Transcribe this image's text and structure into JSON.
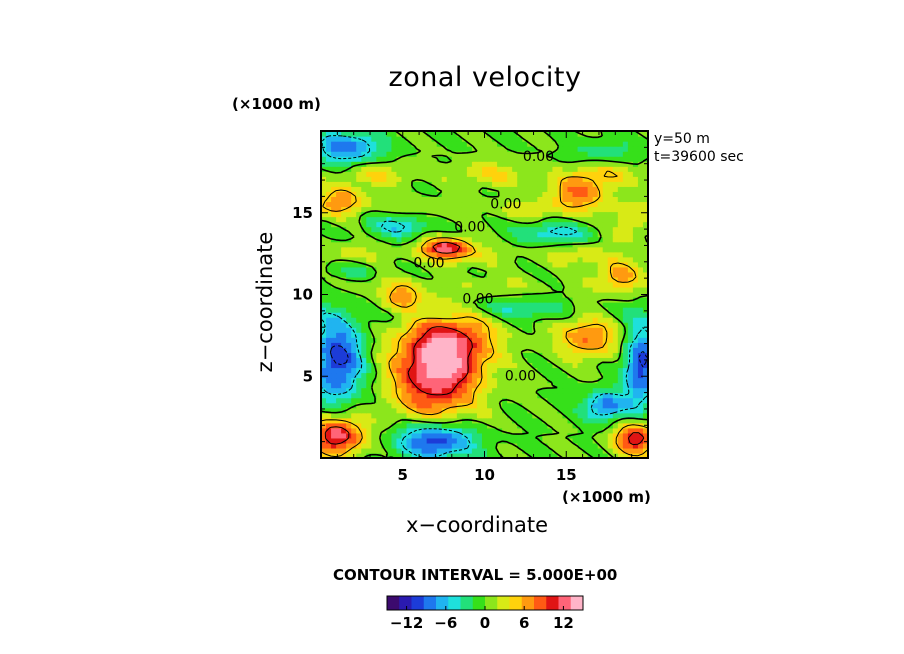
{
  "figure": {
    "title": "zonal velocity",
    "top_unit": "(×1000 m)",
    "bottom_unit": "(×1000 m)",
    "info_line1": "y=50  m",
    "info_line2": "t=39600 sec",
    "contour_interval": "CONTOUR INTERVAL = 5.000E+00"
  },
  "colors": {
    "palette": [
      "#3c0a6e",
      "#2a1ab0",
      "#1c3cd8",
      "#1e78ee",
      "#20b4f0",
      "#1ee0dc",
      "#22e07a",
      "#36e01a",
      "#8ce61c",
      "#d8ea16",
      "#ffd20c",
      "#ff9a10",
      "#ff5a14",
      "#e01414",
      "#ff6478",
      "#ffb4c8"
    ],
    "contour_line": "#000000",
    "frame": "#000000"
  },
  "chart_data": {
    "type": "heatmap",
    "title": "zonal velocity",
    "xlabel": "x−coordinate",
    "ylabel": "z−coordinate",
    "xlim": [
      0,
      20
    ],
    "ylim": [
      0,
      20
    ],
    "x_ticks": [
      5,
      10,
      15
    ],
    "y_ticks": [
      5,
      10,
      15
    ],
    "x_tick_labels": [
      "5",
      "10",
      "15"
    ],
    "y_tick_labels": [
      "5",
      "10",
      "15"
    ],
    "value_range": [
      -14,
      14
    ],
    "contour_labels": [
      {
        "text": "0.00",
        "x": 13.3,
        "z": 18.4
      },
      {
        "text": "0.00",
        "x": 11.3,
        "z": 15.5
      },
      {
        "text": "0.00",
        "x": 9.1,
        "z": 14.1
      },
      {
        "text": "0.00",
        "x": 6.6,
        "z": 11.9
      },
      {
        "text": "0.00",
        "x": 9.6,
        "z": 9.7
      },
      {
        "text": "0.00",
        "x": 12.2,
        "z": 5.0
      }
    ],
    "blobs": [
      {
        "x": 7.0,
        "z": 5.2,
        "rx": 2.6,
        "rz": 2.8,
        "v": 13
      },
      {
        "x": 8.2,
        "z": 7.2,
        "rx": 2.6,
        "rz": 1.8,
        "v": 7
      },
      {
        "x": 1.0,
        "z": 1.4,
        "rx": 1.6,
        "rz": 1.2,
        "v": 13
      },
      {
        "x": 19.3,
        "z": 1.2,
        "rx": 1.3,
        "rz": 1.0,
        "v": 12
      },
      {
        "x": 16.3,
        "z": 7.4,
        "rx": 1.8,
        "rz": 1.2,
        "v": 8
      },
      {
        "x": 7.6,
        "z": 12.9,
        "rx": 1.5,
        "rz": 0.6,
        "v": 12
      },
      {
        "x": 15.8,
        "z": 16.2,
        "rx": 1.8,
        "rz": 1.0,
        "v": 8
      },
      {
        "x": 1.3,
        "z": 15.8,
        "rx": 1.4,
        "rz": 0.8,
        "v": 7
      },
      {
        "x": 18.3,
        "z": 11.3,
        "rx": 1.3,
        "rz": 0.8,
        "v": 6
      },
      {
        "x": 5.0,
        "z": 9.8,
        "rx": 1.3,
        "rz": 0.8,
        "v": 6
      },
      {
        "x": 18.6,
        "z": 14.0,
        "rx": 1.0,
        "rz": 0.8,
        "v": 4
      },
      {
        "x": 1.0,
        "z": 6.0,
        "rx": 1.6,
        "rz": 2.6,
        "v": -11
      },
      {
        "x": 19.6,
        "z": 5.6,
        "rx": 1.0,
        "rz": 2.4,
        "v": -11
      },
      {
        "x": 7.0,
        "z": 1.1,
        "rx": 2.3,
        "rz": 1.1,
        "v": -12
      },
      {
        "x": 17.4,
        "z": 3.2,
        "rx": 1.3,
        "rz": 0.9,
        "v": -9
      },
      {
        "x": 1.6,
        "z": 19.0,
        "rx": 2.0,
        "rz": 1.0,
        "v": -9
      },
      {
        "x": 4.8,
        "z": 14.3,
        "rx": 1.8,
        "rz": 0.8,
        "v": -6
      },
      {
        "x": 14.3,
        "z": 13.8,
        "rx": 2.2,
        "rz": 0.6,
        "v": -6
      },
      {
        "x": 11.8,
        "z": 9.3,
        "rx": 2.8,
        "rz": 0.5,
        "v": -4
      },
      {
        "x": 17.4,
        "z": 18.8,
        "rx": 2.0,
        "rz": 0.8,
        "v": -3
      },
      {
        "x": 1.8,
        "z": 11.6,
        "rx": 1.8,
        "rz": 0.6,
        "v": -3
      }
    ],
    "bands": [
      {
        "z": 17.4,
        "w": 0.7,
        "v": 4
      },
      {
        "z": 15.2,
        "w": 0.6,
        "v": 3
      },
      {
        "z": 12.4,
        "w": 0.7,
        "v": 3
      },
      {
        "z": 10.6,
        "w": 0.6,
        "v": 2
      },
      {
        "z": 8.8,
        "w": 0.5,
        "v": -2
      }
    ],
    "colorbar": {
      "min": -15,
      "max": 15,
      "tick_values": [
        -12,
        -6,
        0,
        6,
        12
      ],
      "tick_labels": [
        "−12",
        "−6",
        "0",
        "6",
        "12"
      ]
    }
  }
}
